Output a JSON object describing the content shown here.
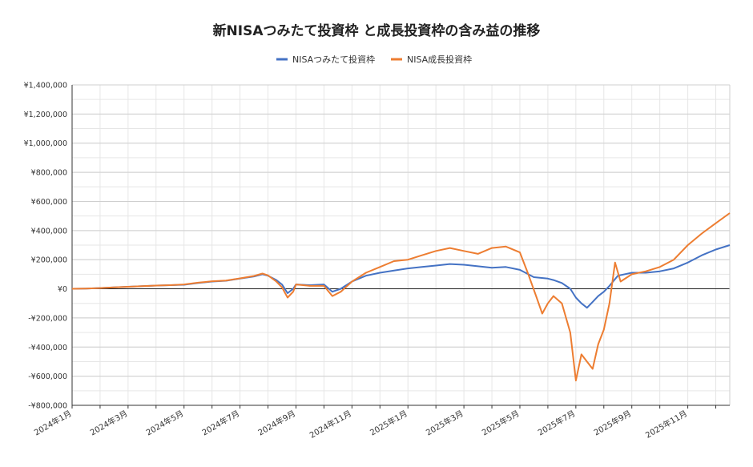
{
  "chart_data": {
    "type": "line",
    "title": "新NISAつみたて投資枠 と成長投資枠の含み益の推移",
    "xlabel": "",
    "ylabel": "",
    "ylim": [
      -800000,
      1400000
    ],
    "yticks": [
      -800000,
      -600000,
      -400000,
      -200000,
      0,
      200000,
      400000,
      600000,
      800000,
      1000000,
      1200000,
      1400000
    ],
    "ytick_labels": [
      "-¥800,000",
      "-¥600,000",
      "-¥400,000",
      "-¥200,000",
      "¥0",
      "¥200,000",
      "¥400,000",
      "¥600,000",
      "¥800,000",
      "¥1,000,000",
      "¥1,200,000",
      "¥1,400,000"
    ],
    "xlim": [
      0,
      23.5
    ],
    "xticks": [
      0,
      2,
      4,
      6,
      8,
      10,
      12,
      14,
      16,
      18,
      20,
      22
    ],
    "xtick_labels": [
      "2024年1月",
      "2024年3月",
      "2024年5月",
      "2024年7月",
      "2024年9月",
      "2024年11月",
      "2025年1月",
      "2025年3月",
      "2025年5月",
      "2025年7月",
      "2025年9月",
      "2025年11月"
    ],
    "grid": true,
    "legend_position": "top-center",
    "series": [
      {
        "name": "NISAつみたて投資枠",
        "color": "#4472C4",
        "points": [
          [
            0,
            0
          ],
          [
            0.5,
            2000
          ],
          [
            1,
            5000
          ],
          [
            1.5,
            10000
          ],
          [
            2,
            14000
          ],
          [
            2.5,
            18000
          ],
          [
            3,
            22000
          ],
          [
            3.5,
            25000
          ],
          [
            4,
            28000
          ],
          [
            4.5,
            40000
          ],
          [
            5,
            50000
          ],
          [
            5.5,
            55000
          ],
          [
            6,
            70000
          ],
          [
            6.5,
            85000
          ],
          [
            6.8,
            100000
          ],
          [
            7,
            90000
          ],
          [
            7.3,
            60000
          ],
          [
            7.5,
            30000
          ],
          [
            7.7,
            -30000
          ],
          [
            7.9,
            0
          ],
          [
            8,
            30000
          ],
          [
            8.5,
            25000
          ],
          [
            9,
            30000
          ],
          [
            9.3,
            -20000
          ],
          [
            9.6,
            0
          ],
          [
            10,
            50000
          ],
          [
            10.5,
            90000
          ],
          [
            11,
            110000
          ],
          [
            11.5,
            125000
          ],
          [
            12,
            140000
          ],
          [
            12.5,
            150000
          ],
          [
            13,
            160000
          ],
          [
            13.5,
            170000
          ],
          [
            14,
            165000
          ],
          [
            14.5,
            155000
          ],
          [
            15,
            145000
          ],
          [
            15.5,
            150000
          ],
          [
            16,
            130000
          ],
          [
            16.5,
            80000
          ],
          [
            17,
            70000
          ],
          [
            17.2,
            60000
          ],
          [
            17.5,
            40000
          ],
          [
            17.8,
            0
          ],
          [
            18,
            -60000
          ],
          [
            18.2,
            -100000
          ],
          [
            18.4,
            -130000
          ],
          [
            18.6,
            -90000
          ],
          [
            18.8,
            -50000
          ],
          [
            19,
            -20000
          ],
          [
            19.2,
            20000
          ],
          [
            19.5,
            90000
          ],
          [
            20,
            110000
          ],
          [
            20.5,
            110000
          ],
          [
            21,
            120000
          ],
          [
            21.5,
            140000
          ],
          [
            22,
            180000
          ],
          [
            22.5,
            230000
          ],
          [
            23,
            270000
          ],
          [
            23.5,
            300000
          ]
        ]
      },
      {
        "name": "NISA成長投資枠",
        "color": "#ED7D31",
        "points": [
          [
            0,
            0
          ],
          [
            0.5,
            2000
          ],
          [
            1,
            5000
          ],
          [
            1.5,
            10000
          ],
          [
            2,
            14000
          ],
          [
            2.5,
            18000
          ],
          [
            3,
            22000
          ],
          [
            3.5,
            25000
          ],
          [
            4,
            30000
          ],
          [
            4.5,
            42000
          ],
          [
            5,
            52000
          ],
          [
            5.5,
            57000
          ],
          [
            6,
            72000
          ],
          [
            6.5,
            88000
          ],
          [
            6.8,
            105000
          ],
          [
            7,
            92000
          ],
          [
            7.3,
            50000
          ],
          [
            7.5,
            10000
          ],
          [
            7.7,
            -60000
          ],
          [
            7.9,
            -20000
          ],
          [
            8,
            30000
          ],
          [
            8.5,
            20000
          ],
          [
            9,
            20000
          ],
          [
            9.3,
            -50000
          ],
          [
            9.6,
            -20000
          ],
          [
            10,
            50000
          ],
          [
            10.5,
            110000
          ],
          [
            11,
            150000
          ],
          [
            11.5,
            190000
          ],
          [
            12,
            200000
          ],
          [
            12.5,
            230000
          ],
          [
            13,
            260000
          ],
          [
            13.5,
            280000
          ],
          [
            14,
            260000
          ],
          [
            14.5,
            240000
          ],
          [
            15,
            280000
          ],
          [
            15.5,
            290000
          ],
          [
            16,
            250000
          ],
          [
            16.3,
            100000
          ],
          [
            16.6,
            -60000
          ],
          [
            16.8,
            -170000
          ],
          [
            17,
            -100000
          ],
          [
            17.2,
            -50000
          ],
          [
            17.5,
            -100000
          ],
          [
            17.8,
            -300000
          ],
          [
            18,
            -630000
          ],
          [
            18.2,
            -450000
          ],
          [
            18.4,
            -500000
          ],
          [
            18.6,
            -550000
          ],
          [
            18.8,
            -380000
          ],
          [
            19,
            -280000
          ],
          [
            19.2,
            -100000
          ],
          [
            19.4,
            180000
          ],
          [
            19.6,
            50000
          ],
          [
            20,
            100000
          ],
          [
            20.5,
            120000
          ],
          [
            21,
            150000
          ],
          [
            21.5,
            200000
          ],
          [
            22,
            300000
          ],
          [
            22.5,
            380000
          ],
          [
            23,
            450000
          ],
          [
            23.5,
            520000
          ]
        ]
      }
    ]
  }
}
